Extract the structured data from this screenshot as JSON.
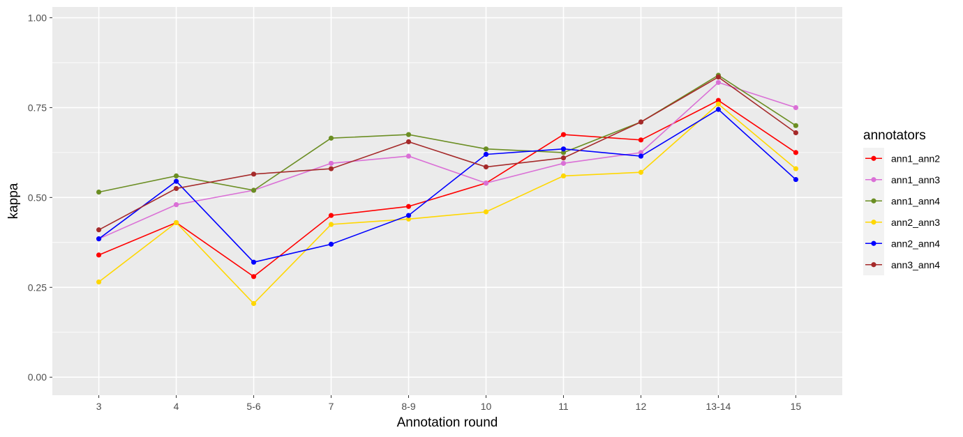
{
  "chart_data": {
    "type": "line",
    "xlabel": "Annotation round",
    "ylabel": "kappa",
    "ylim": [
      -0.05,
      1.03
    ],
    "yticks": [
      "0.00",
      "0.25",
      "0.50",
      "0.75",
      "1.00"
    ],
    "ytick_values": [
      0,
      0.25,
      0.5,
      0.75,
      1.0
    ],
    "categories": [
      "3",
      "4",
      "5-6",
      "7",
      "8-9",
      "10",
      "11",
      "12",
      "13-14",
      "15"
    ],
    "grid": true,
    "legend_title": "annotators",
    "legend_position": "right",
    "series": [
      {
        "name": "ann1_ann2",
        "color": "#ff0000",
        "values": [
          0.34,
          0.43,
          0.28,
          0.45,
          0.475,
          0.54,
          0.675,
          0.66,
          0.77,
          0.625
        ]
      },
      {
        "name": "ann1_ann3",
        "color": "#da70d6",
        "values": [
          0.385,
          0.48,
          0.52,
          0.595,
          0.615,
          0.54,
          0.595,
          0.625,
          0.82,
          0.75
        ]
      },
      {
        "name": "ann1_ann4",
        "color": "#6b8e23",
        "values": [
          0.515,
          0.56,
          0.52,
          0.665,
          0.675,
          0.635,
          0.625,
          0.71,
          0.84,
          0.7
        ]
      },
      {
        "name": "ann2_ann3",
        "color": "#ffd700",
        "values": [
          0.265,
          0.43,
          0.205,
          0.425,
          0.44,
          0.46,
          0.56,
          0.57,
          0.76,
          0.58
        ]
      },
      {
        "name": "ann2_ann4",
        "color": "#0000ff",
        "values": [
          0.385,
          0.545,
          0.32,
          0.37,
          0.45,
          0.62,
          0.635,
          0.615,
          0.745,
          0.55
        ]
      },
      {
        "name": "ann3_ann4",
        "color": "#a52a2a",
        "values": [
          0.41,
          0.525,
          0.565,
          0.58,
          0.655,
          0.585,
          0.61,
          0.71,
          0.835,
          0.68
        ]
      }
    ]
  }
}
